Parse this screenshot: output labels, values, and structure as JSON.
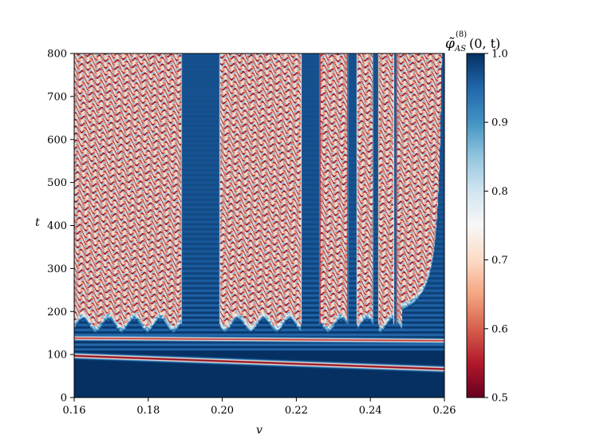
{
  "chart_data": {
    "type": "heatmap",
    "title": "",
    "xlabel": "v",
    "ylabel": "t",
    "xlim": [
      0.16,
      0.26
    ],
    "ylim": [
      0,
      800
    ],
    "x_ticks": [
      "0.16",
      "0.18",
      "0.20",
      "0.22",
      "0.24",
      "0.26"
    ],
    "y_ticks": [
      "0",
      "100",
      "200",
      "300",
      "400",
      "500",
      "600",
      "700",
      "800"
    ],
    "colorbar": {
      "title_base": "φ̃",
      "title_sup": "(8)",
      "title_sub": "AS",
      "title_args": "(0, t)",
      "range": [
        0.5,
        1.0
      ],
      "ticks": [
        "0.5",
        "0.6",
        "0.7",
        "0.8",
        "0.9",
        "1.0"
      ],
      "colormap": "RdBu",
      "colors": [
        "#67001f",
        "#b2182b",
        "#d6604d",
        "#f4a582",
        "#fddbc7",
        "#f7f7f7",
        "#d1e5f0",
        "#92c5de",
        "#4393c3",
        "#2166ac",
        "#053061"
      ]
    },
    "bounce_windows": [
      [
        0.1888,
        0.1995
      ],
      [
        0.2212,
        0.2265
      ],
      [
        0.2338,
        0.2365
      ],
      [
        0.2405,
        0.2423
      ],
      [
        0.2462,
        0.2472
      ]
    ]
  }
}
